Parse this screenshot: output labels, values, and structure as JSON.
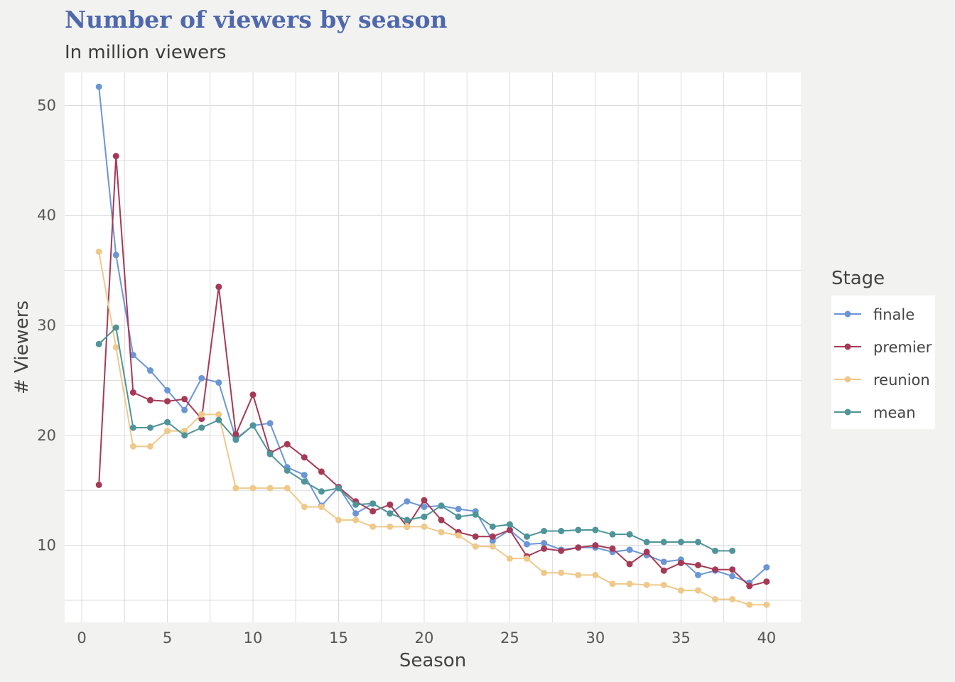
{
  "chart_data": {
    "type": "line",
    "title": "Number of viewers by season",
    "subtitle": "In million viewers",
    "xlabel": "Season",
    "ylabel": "# Viewers",
    "xlim": [
      -1,
      42
    ],
    "ylim": [
      3.0,
      53.0
    ],
    "xticks": [
      0,
      5,
      10,
      15,
      20,
      25,
      30,
      35,
      40
    ],
    "yticks": [
      10,
      20,
      30,
      40,
      50
    ],
    "grid": true,
    "legend": {
      "title": "Stage",
      "position": "right"
    },
    "series": [
      {
        "name": "finale",
        "color": "#6b96d6",
        "points": [
          [
            1,
            51.7
          ],
          [
            2,
            36.4
          ],
          [
            3,
            27.3
          ],
          [
            4,
            25.9
          ],
          [
            5,
            24.1
          ],
          [
            6,
            22.3
          ],
          [
            7,
            25.2
          ],
          [
            8,
            24.8
          ],
          [
            9,
            19.7
          ],
          [
            10,
            20.9
          ],
          [
            11,
            21.1
          ],
          [
            12,
            17.1
          ],
          [
            13,
            16.4
          ],
          [
            14,
            13.6
          ],
          [
            15,
            15.3
          ],
          [
            16,
            12.9
          ],
          [
            17,
            13.8
          ],
          [
            18,
            12.9
          ],
          [
            19,
            14.0
          ],
          [
            20,
            13.5
          ],
          [
            21,
            13.6
          ],
          [
            22,
            13.3
          ],
          [
            23,
            13.1
          ],
          [
            24,
            10.4
          ],
          [
            25,
            11.4
          ],
          [
            26,
            10.1
          ],
          [
            27,
            10.2
          ],
          [
            28,
            9.6
          ],
          [
            29,
            9.8
          ],
          [
            30,
            9.8
          ],
          [
            31,
            9.4
          ],
          [
            32,
            9.6
          ],
          [
            33,
            9.1
          ],
          [
            34,
            8.5
          ],
          [
            35,
            8.7
          ],
          [
            36,
            7.3
          ],
          [
            37,
            7.7
          ],
          [
            38,
            7.2
          ],
          [
            39,
            6.6
          ],
          [
            40,
            8.0
          ]
        ]
      },
      {
        "name": "premier",
        "color": "#a63a56",
        "points": [
          [
            1,
            15.5
          ],
          [
            2,
            45.4
          ],
          [
            3,
            23.9
          ],
          [
            4,
            23.2
          ],
          [
            5,
            23.1
          ],
          [
            6,
            23.3
          ],
          [
            7,
            21.5
          ],
          [
            8,
            33.5
          ],
          [
            9,
            20.1
          ],
          [
            10,
            23.7
          ],
          [
            11,
            18.4
          ],
          [
            12,
            19.2
          ],
          [
            13,
            18.0
          ],
          [
            14,
            16.7
          ],
          [
            15,
            15.3
          ],
          [
            16,
            14.0
          ],
          [
            17,
            13.1
          ],
          [
            18,
            13.7
          ],
          [
            19,
            11.7
          ],
          [
            20,
            14.1
          ],
          [
            21,
            12.3
          ],
          [
            22,
            11.2
          ],
          [
            23,
            10.8
          ],
          [
            24,
            10.8
          ],
          [
            25,
            11.4
          ],
          [
            26,
            9.0
          ],
          [
            27,
            9.7
          ],
          [
            28,
            9.5
          ],
          [
            29,
            9.8
          ],
          [
            30,
            10.0
          ],
          [
            31,
            9.7
          ],
          [
            32,
            8.3
          ],
          [
            33,
            9.4
          ],
          [
            34,
            7.7
          ],
          [
            35,
            8.4
          ],
          [
            36,
            8.2
          ],
          [
            37,
            7.8
          ],
          [
            38,
            7.8
          ],
          [
            39,
            6.3
          ],
          [
            40,
            6.7
          ]
        ]
      },
      {
        "name": "reunion",
        "color": "#efc98a",
        "points": [
          [
            1,
            36.7
          ],
          [
            2,
            28.0
          ],
          [
            3,
            19.0
          ],
          [
            4,
            19.0
          ],
          [
            5,
            20.4
          ],
          [
            6,
            20.4
          ],
          [
            7,
            21.9
          ],
          [
            8,
            21.9
          ],
          [
            9,
            15.2
          ],
          [
            10,
            15.2
          ],
          [
            11,
            15.2
          ],
          [
            12,
            15.2
          ],
          [
            13,
            13.5
          ],
          [
            14,
            13.5
          ],
          [
            15,
            12.3
          ],
          [
            16,
            12.3
          ],
          [
            17,
            11.7
          ],
          [
            18,
            11.7
          ],
          [
            19,
            11.7
          ],
          [
            20,
            11.7
          ],
          [
            21,
            11.2
          ],
          [
            22,
            10.9
          ],
          [
            23,
            9.9
          ],
          [
            24,
            9.9
          ],
          [
            25,
            8.8
          ],
          [
            26,
            8.8
          ],
          [
            27,
            7.5
          ],
          [
            28,
            7.5
          ],
          [
            29,
            7.3
          ],
          [
            30,
            7.3
          ],
          [
            31,
            6.5
          ],
          [
            32,
            6.5
          ],
          [
            33,
            6.4
          ],
          [
            34,
            6.4
          ],
          [
            35,
            5.9
          ],
          [
            36,
            5.9
          ],
          [
            37,
            5.1
          ],
          [
            38,
            5.1
          ],
          [
            39,
            4.6
          ],
          [
            40,
            4.6
          ]
        ]
      },
      {
        "name": "mean",
        "color": "#4f9499",
        "points": [
          [
            1,
            28.3
          ],
          [
            2,
            29.8
          ],
          [
            3,
            20.7
          ],
          [
            4,
            20.7
          ],
          [
            5,
            21.2
          ],
          [
            6,
            20.0
          ],
          [
            7,
            20.7
          ],
          [
            8,
            21.4
          ],
          [
            9,
            19.6
          ],
          [
            10,
            20.9
          ],
          [
            11,
            18.3
          ],
          [
            12,
            16.8
          ],
          [
            13,
            15.8
          ],
          [
            14,
            14.9
          ],
          [
            15,
            15.2
          ],
          [
            16,
            13.7
          ],
          [
            17,
            13.8
          ],
          [
            18,
            12.9
          ],
          [
            19,
            12.3
          ],
          [
            20,
            12.6
          ],
          [
            21,
            13.6
          ],
          [
            22,
            12.6
          ],
          [
            23,
            12.8
          ],
          [
            24,
            11.7
          ],
          [
            25,
            11.9
          ],
          [
            26,
            10.8
          ],
          [
            27,
            11.3
          ],
          [
            28,
            11.3
          ],
          [
            29,
            11.4
          ],
          [
            30,
            11.4
          ],
          [
            31,
            11.0
          ],
          [
            32,
            11.0
          ],
          [
            33,
            10.3
          ],
          [
            34,
            10.3
          ],
          [
            35,
            10.3
          ],
          [
            36,
            10.3
          ],
          [
            37,
            9.5
          ],
          [
            38,
            9.5
          ]
        ]
      }
    ]
  }
}
